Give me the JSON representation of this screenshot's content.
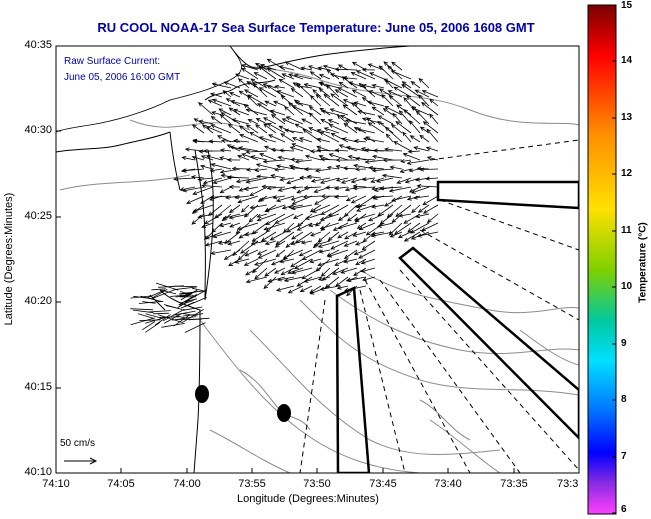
{
  "title": "RU COOL  NOAA-17  Sea Surface Temperature:  June 05, 2006 1608 GMT",
  "annotation": {
    "line1": "Raw Surface Current:",
    "line2": "June 05, 2006 16:00 GMT"
  },
  "scale_label": "50 cm/s",
  "x_axis": {
    "label": "Longitude (Degrees:Minutes)",
    "ticks": [
      "74:10",
      "74:05",
      "74:00",
      "73:55",
      "73:50",
      "73:45",
      "73:40",
      "73:35",
      "73:3"
    ]
  },
  "y_axis": {
    "label": "Latitude (Degrees:Minutes)",
    "ticks": [
      "40:35",
      "40:30",
      "40:25",
      "40:20",
      "40:15",
      "40:10"
    ]
  },
  "colorbar": {
    "label": "Temperature (°C)",
    "ticks": [
      "15",
      "14",
      "13",
      "12",
      "11",
      "10",
      "9",
      "8",
      "7",
      "6"
    ],
    "colors": [
      "#8b0000",
      "#ff0000",
      "#ff8c00",
      "#ffd700",
      "#9acd32",
      "#00c000",
      "#00e0e0",
      "#1e90ff",
      "#0000ff",
      "#8a2be2",
      "#ff40ff"
    ]
  }
}
